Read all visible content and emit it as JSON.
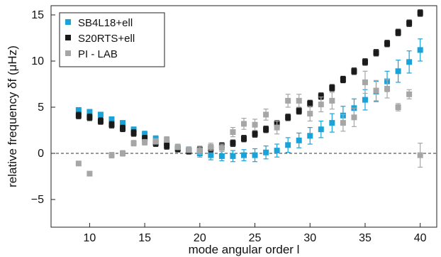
{
  "chart_data": {
    "type": "scatter",
    "xlabel": "mode angular order l",
    "ylabel": "relative frequency δf (μHz)",
    "xlim": [
      6.5,
      41.5
    ],
    "ylim": [
      -8,
      16
    ],
    "xticks": [
      10,
      15,
      20,
      25,
      30,
      35,
      40
    ],
    "yticks": [
      -5,
      0,
      5,
      10,
      15
    ],
    "zero_line": "dashed",
    "grid": false,
    "legend_position": "top-left",
    "series": [
      {
        "name": "SB4L18+ell",
        "color": "#1aa3d9",
        "marker": "square",
        "x": [
          9,
          10,
          11,
          12,
          13,
          14,
          15,
          16,
          17,
          18,
          19,
          20,
          21,
          22,
          23,
          24,
          25,
          26,
          27,
          28,
          29,
          30,
          31,
          32,
          33,
          34,
          35,
          36,
          37,
          38,
          39,
          40
        ],
        "y": [
          4.7,
          4.5,
          4.2,
          3.7,
          3.3,
          2.6,
          2.1,
          1.6,
          1.1,
          0.6,
          0.3,
          0.0,
          -0.2,
          -0.3,
          -0.3,
          -0.2,
          -0.2,
          0.1,
          0.3,
          0.9,
          1.4,
          1.9,
          2.6,
          3.3,
          4.1,
          4.9,
          5.8,
          6.7,
          7.8,
          8.9,
          9.9,
          11.2
        ],
        "err": [
          0.2,
          0.2,
          0.2,
          0.2,
          0.2,
          0.2,
          0.3,
          0.3,
          0.3,
          0.3,
          0.4,
          0.4,
          0.5,
          0.5,
          0.6,
          0.6,
          0.7,
          0.7,
          0.7,
          0.8,
          0.8,
          0.9,
          0.9,
          1.0,
          1.0,
          1.0,
          1.1,
          1.1,
          1.1,
          1.2,
          1.2,
          1.2
        ]
      },
      {
        "name": "S20RTS+ell",
        "color": "#1a1a1a",
        "marker": "square",
        "x": [
          9,
          10,
          11,
          12,
          13,
          14,
          15,
          16,
          17,
          18,
          19,
          20,
          21,
          22,
          23,
          24,
          25,
          26,
          27,
          28,
          29,
          30,
          31,
          32,
          33,
          34,
          35,
          36,
          37,
          38,
          39,
          40
        ],
        "y": [
          4.1,
          3.9,
          3.5,
          3.1,
          2.7,
          2.2,
          1.6,
          1.1,
          0.8,
          0.5,
          0.3,
          0.4,
          0.5,
          0.8,
          1.1,
          1.6,
          2.1,
          2.6,
          3.2,
          3.9,
          4.6,
          5.4,
          6.2,
          7.1,
          8.0,
          8.9,
          9.9,
          10.9,
          11.9,
          13.1,
          14.1,
          15.2
        ]
      },
      {
        "name": "PI - LAB",
        "color": "#a6a6a6",
        "marker": "square",
        "x": [
          9,
          10,
          12,
          13,
          14,
          15,
          16,
          17,
          18,
          19,
          20,
          21,
          22,
          23,
          24,
          25,
          26,
          27,
          28,
          29,
          30,
          31,
          32,
          33,
          34,
          35,
          36,
          37,
          38,
          39,
          40
        ],
        "y": [
          -1.1,
          -2.2,
          -0.2,
          0.0,
          1.1,
          1.2,
          1.3,
          1.5,
          0.7,
          0.4,
          0.3,
          0.7,
          0.6,
          2.3,
          3.2,
          3.1,
          4.2,
          2.8,
          5.7,
          5.7,
          4.3,
          5.3,
          5.7,
          3.3,
          3.9,
          7.7,
          6.8,
          7.0,
          5.0,
          6.4,
          -0.2
        ],
        "err": [
          0.2,
          0.2,
          0.3,
          0.3,
          0.3,
          0.3,
          0.3,
          0.3,
          0.3,
          0.3,
          0.4,
          0.4,
          0.4,
          0.5,
          0.6,
          0.6,
          0.6,
          0.7,
          0.7,
          0.7,
          0.8,
          0.8,
          0.9,
          0.9,
          1.0,
          1.2,
          1.1,
          1.0,
          0.4,
          0.5,
          1.3
        ]
      }
    ]
  }
}
